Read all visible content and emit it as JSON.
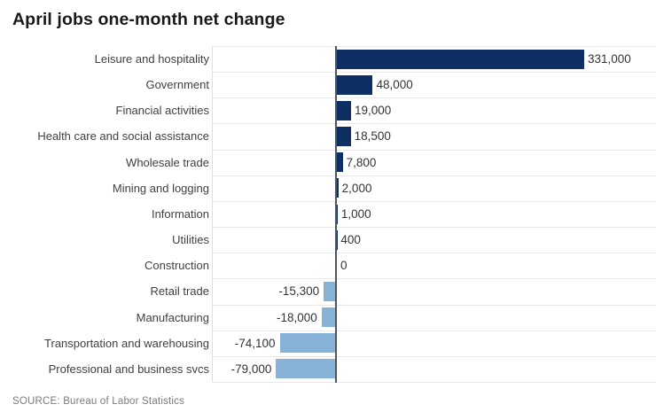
{
  "title": "April jobs one-month net change",
  "source": {
    "text": "SOURCE: Bureau of Labor Statistics"
  },
  "colors": {
    "positive_bar": "#0d2f63",
    "negative_bar": "#85b2d6",
    "zero_axis": "#4d565e",
    "gridline": "#e9e9e9",
    "plot_border": "#dedede",
    "title_text": "#191919",
    "category_text": "#3f3f3f",
    "value_text": "#333333",
    "source_text": "#7b7b7b"
  },
  "chart_data": {
    "type": "bar",
    "orientation": "horizontal",
    "title": "April jobs one-month net change",
    "xlabel": "",
    "ylabel": "",
    "xlim": [
      -165000,
      428000
    ],
    "grid": "row-separators",
    "legend": "none",
    "zero_axis": true,
    "categories": [
      "Leisure and hospitality",
      "Government",
      "Financial activities",
      "Health care and social assistance",
      "Wholesale trade",
      "Mining and logging",
      "Information",
      "Utilities",
      "Construction",
      "Retail trade",
      "Manufacturing",
      "Transportation and warehousing",
      "Professional and business svcs"
    ],
    "values": [
      331000,
      48000,
      19000,
      18500,
      7800,
      2000,
      1000,
      400,
      0,
      -15300,
      -18000,
      -74100,
      -79000
    ],
    "value_labels": [
      "331,000",
      "48,000",
      "19,000",
      "18,500",
      "7,800",
      "2,000",
      "1,000",
      "400",
      "0",
      "-15,300",
      "-18,000",
      "-74,100",
      "-79,000"
    ]
  }
}
